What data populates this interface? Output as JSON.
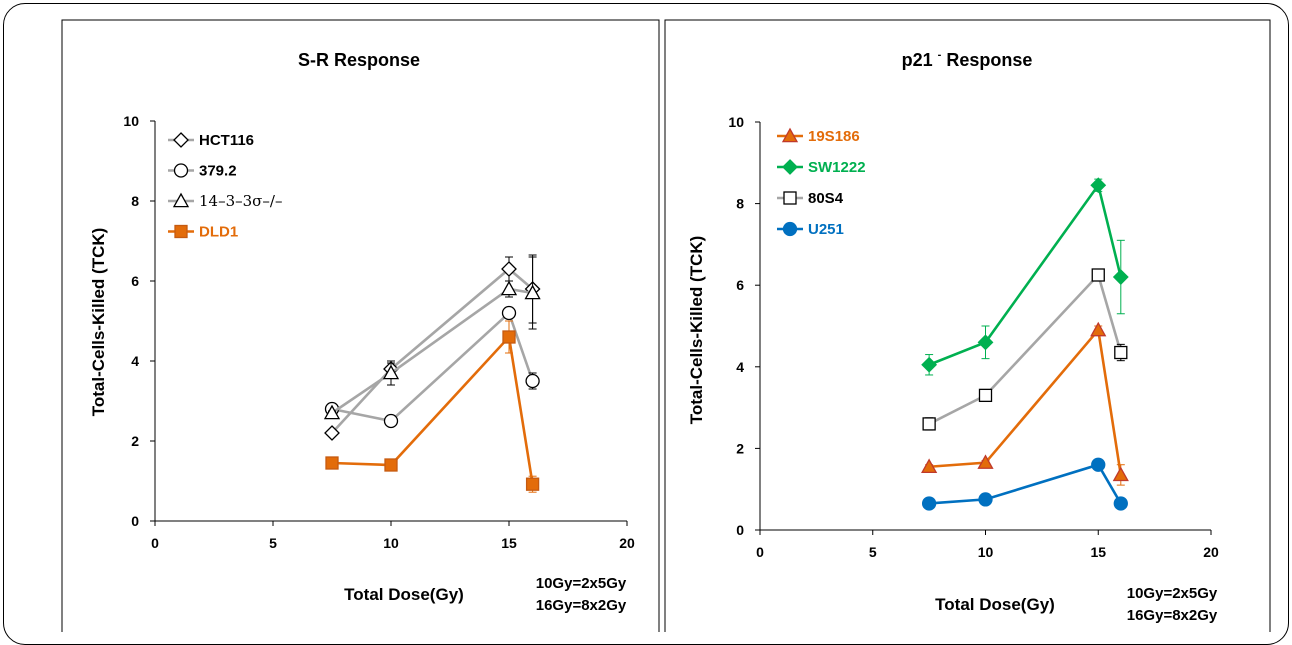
{
  "chart_data": [
    {
      "type": "line",
      "title": "S-R Response",
      "xlabel": "Total Dose(Gy)",
      "ylabel": "Total-Cells-Killed (TCK)",
      "xlim": [
        0,
        20
      ],
      "ylim": [
        0,
        10
      ],
      "xticks": [
        "0",
        "5",
        "10",
        "15",
        "20"
      ],
      "yticks": [
        "0",
        "2",
        "4",
        "6",
        "8",
        "10"
      ],
      "note_lines": [
        "10Gy=2x5Gy",
        "16Gy=8x2Gy"
      ],
      "legend_position": "top-left",
      "grid": false,
      "series": [
        {
          "name": "HCT116",
          "marker": "diamond-open",
          "line_color": "#a6a6a6",
          "label_color": "#000000",
          "x": [
            7.5,
            10,
            15,
            16
          ],
          "y": [
            2.2,
            3.8,
            6.3,
            5.8
          ],
          "err": [
            0.05,
            0.15,
            0.3,
            0.85
          ]
        },
        {
          "name": "379.2",
          "marker": "circle-open",
          "line_color": "#a6a6a6",
          "label_color": "#000000",
          "x": [
            7.5,
            10,
            15,
            16
          ],
          "y": [
            2.8,
            2.5,
            5.2,
            3.5
          ],
          "err": [
            0.05,
            0.05,
            0.1,
            0.2
          ]
        },
        {
          "name": "14–3–3σ–/–",
          "marker": "triangle-open",
          "line_color": "#a6a6a6",
          "label_color": "#000000",
          "x": [
            7.5,
            10,
            15,
            16
          ],
          "y": [
            2.7,
            3.7,
            5.8,
            5.7
          ],
          "err": [
            0.05,
            0.3,
            0.2,
            0.9
          ]
        },
        {
          "name": "DLD1",
          "marker": "square-filled",
          "line_color": "#e36c0a",
          "fill": "#e36c0a",
          "label_color": "#e36c0a",
          "x": [
            7.5,
            10,
            15,
            16
          ],
          "y": [
            1.45,
            1.4,
            4.6,
            0.92
          ],
          "err": [
            0.05,
            0.05,
            0.4,
            0.2
          ]
        }
      ]
    },
    {
      "type": "line",
      "title_main": "p21",
      "title_superscript": "-",
      "title_rest": " Response",
      "xlabel": "Total Dose(Gy)",
      "ylabel": "Total-Cells-Killed (TCK)",
      "xlim": [
        0,
        20
      ],
      "ylim": [
        0,
        10
      ],
      "xticks": [
        "0",
        "5",
        "10",
        "15",
        "20"
      ],
      "yticks": [
        "0",
        "2",
        "4",
        "6",
        "8",
        "10"
      ],
      "note_lines": [
        "10Gy=2x5Gy",
        "16Gy=8x2Gy"
      ],
      "legend_position": "top-left",
      "grid": false,
      "series": [
        {
          "name": "19S186",
          "marker": "triangle-filled",
          "line_color": "#e36c0a",
          "fill": "#e36c0a",
          "label_color": "#e36c0a",
          "x": [
            7.5,
            10,
            15,
            16
          ],
          "y": [
            1.55,
            1.65,
            4.9,
            1.35
          ],
          "err": [
            0.05,
            0.05,
            0.1,
            0.25
          ]
        },
        {
          "name": "SW1222",
          "marker": "diamond-filled",
          "line_color": "#00b050",
          "fill": "#00b050",
          "label_color": "#00b050",
          "x": [
            7.5,
            10,
            15,
            16
          ],
          "y": [
            4.05,
            4.6,
            8.45,
            6.2
          ],
          "err": [
            0.25,
            0.4,
            0.15,
            0.9
          ]
        },
        {
          "name": "80S4",
          "marker": "square-open",
          "line_color": "#a6a6a6",
          "label_color": "#000000",
          "x": [
            7.5,
            10,
            15,
            16
          ],
          "y": [
            2.6,
            3.3,
            6.25,
            4.35
          ],
          "err": [
            0.15,
            0.05,
            0.05,
            0.2
          ]
        },
        {
          "name": "U251",
          "marker": "circle-filled",
          "line_color": "#0070c0",
          "fill": "#0070c0",
          "label_color": "#0070c0",
          "x": [
            7.5,
            10,
            15,
            16
          ],
          "y": [
            0.65,
            0.75,
            1.6,
            0.65
          ],
          "err": [
            0.03,
            0.03,
            0.05,
            0.03
          ]
        }
      ]
    }
  ]
}
